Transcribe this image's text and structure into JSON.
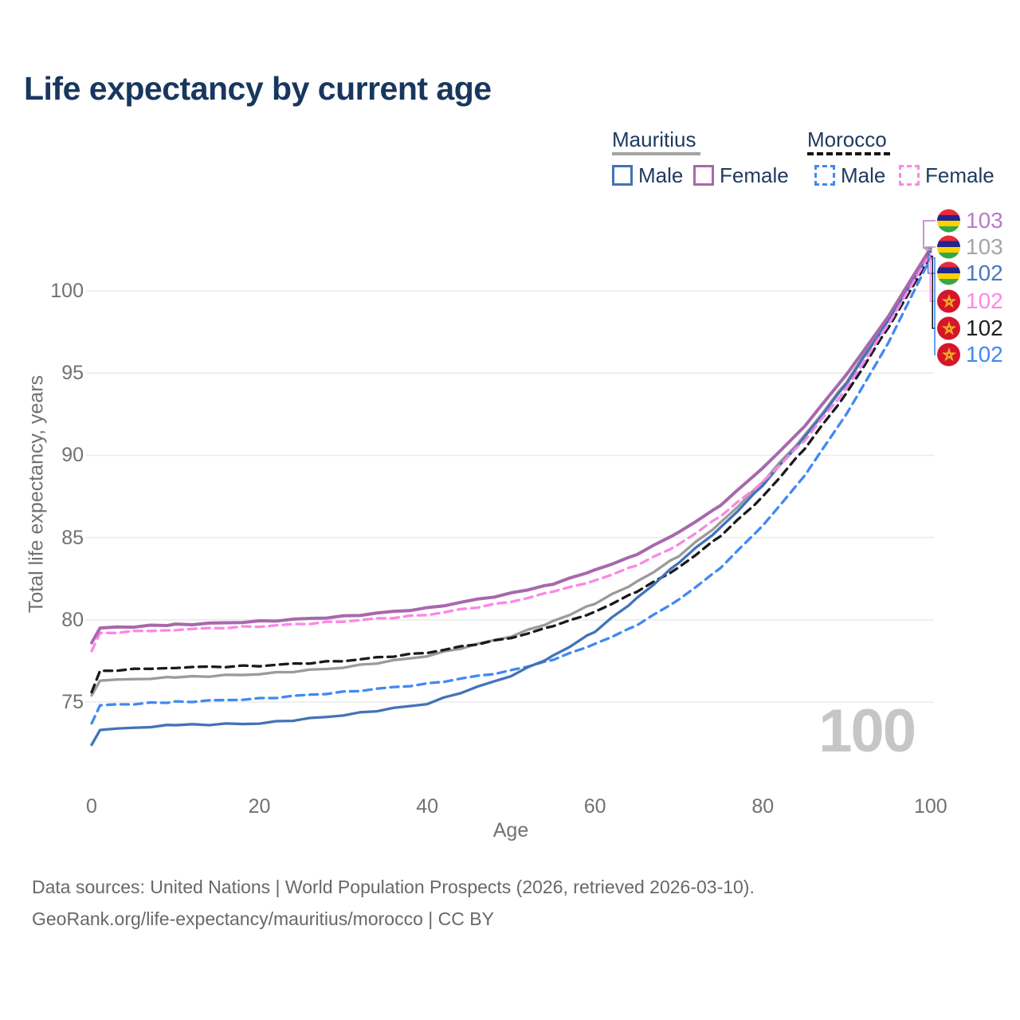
{
  "title": "Life expectancy by current age",
  "legend": {
    "mauritius": {
      "label": "Mauritius",
      "male": "Male",
      "female": "Female"
    },
    "morocco": {
      "label": "Morocco",
      "male": "Male",
      "female": "Female"
    }
  },
  "axes": {
    "y_title": "Total life expectancy, years",
    "x_title": "Age",
    "y_ticks": [
      75,
      80,
      85,
      90,
      95,
      100
    ],
    "x_ticks": [
      0,
      20,
      40,
      60,
      80,
      100
    ]
  },
  "watermark": "100",
  "end_labels": [
    {
      "series": "Mauritius Female",
      "value_label": "103",
      "flag": "mauritius",
      "color": "#b67cc8"
    },
    {
      "series": "Mauritius All",
      "value_label": "103",
      "flag": "mauritius",
      "color": "#a6a6a6"
    },
    {
      "series": "Mauritius Male",
      "value_label": "102",
      "flag": "mauritius",
      "color": "#4a78bf"
    },
    {
      "series": "Morocco Female",
      "value_label": "102",
      "flag": "morocco",
      "color": "#ff87e8"
    },
    {
      "series": "Morocco All",
      "value_label": "102",
      "flag": "morocco",
      "color": "#1f1f1f"
    },
    {
      "series": "Morocco Male",
      "value_label": "102",
      "flag": "morocco",
      "color": "#4189f2"
    }
  ],
  "footer": {
    "line1": "Data sources: United Nations | World Population Prospects (2026, retrieved 2026-03-10).",
    "line2": "GeoRank.org/life-expectancy/mauritius/morocco | CC BY"
  },
  "colors": {
    "title_text": "#18375e",
    "legend_text": "#1e3a5e",
    "axis_text": "#717171",
    "gridline": "#ebebeb",
    "watermark": "#c6c6c6",
    "footer_text": "#686868",
    "mauritius_male": "#4273b8",
    "mauritius_female": "#a868ac",
    "mauritius_all": "#9b9b9b",
    "morocco_male": "#4189f2",
    "morocco_female": "#fb87e6",
    "morocco_all": "#1a1a1a"
  },
  "chart_data": {
    "type": "line",
    "title": "Life expectancy by current age",
    "xlabel": "Age",
    "ylabel": "Total life expectancy, years",
    "xlim": [
      0,
      100
    ],
    "ylim_shown": [
      72,
      103
    ],
    "grid": "horizontal-only",
    "legend_position": "top-right",
    "x": [
      0,
      1,
      10,
      20,
      30,
      40,
      50,
      55,
      60,
      65,
      70,
      75,
      80,
      85,
      90,
      95,
      100
    ],
    "series": [
      {
        "name": "Mauritius All",
        "country": "Mauritius",
        "sex": "All",
        "style": "solid",
        "color": "#9b9b9b",
        "values": [
          75.4,
          76.3,
          76.5,
          76.7,
          77.1,
          77.8,
          79.0,
          79.9,
          81.0,
          82.3,
          83.9,
          85.9,
          88.4,
          91.2,
          94.5,
          98.3,
          102.5
        ]
      },
      {
        "name": "Morocco All",
        "country": "Morocco",
        "sex": "All",
        "style": "dashed",
        "color": "#1a1a1a",
        "values": [
          75.6,
          76.9,
          77.1,
          77.2,
          77.5,
          78.0,
          78.9,
          79.6,
          80.5,
          81.7,
          83.2,
          85.1,
          87.5,
          90.4,
          93.8,
          97.8,
          102.1
        ]
      },
      {
        "name": "Morocco Male",
        "country": "Morocco",
        "sex": "Male",
        "style": "dashed",
        "color": "#4189f2",
        "values": [
          73.7,
          74.8,
          75.0,
          75.2,
          75.6,
          76.1,
          76.9,
          77.6,
          78.5,
          79.7,
          81.2,
          83.2,
          85.7,
          88.8,
          92.5,
          96.9,
          102.0
        ]
      },
      {
        "name": "Mauritius Male",
        "country": "Mauritius",
        "sex": "Male",
        "style": "solid",
        "color": "#4273b8",
        "values": [
          72.4,
          73.3,
          73.6,
          73.7,
          74.2,
          74.9,
          76.6,
          77.8,
          79.3,
          81.3,
          83.5,
          85.6,
          88.2,
          91.1,
          94.4,
          98.2,
          102.4
        ]
      },
      {
        "name": "Morocco Female",
        "country": "Morocco",
        "sex": "Female",
        "style": "dashed",
        "color": "#fb87e6",
        "values": [
          78.1,
          79.2,
          79.4,
          79.6,
          79.9,
          80.3,
          81.1,
          81.7,
          82.4,
          83.3,
          84.6,
          86.3,
          88.4,
          90.9,
          94.1,
          98.0,
          102.3
        ]
      },
      {
        "name": "Mauritius Female",
        "country": "Mauritius",
        "sex": "Female",
        "style": "solid",
        "color": "#a868ac",
        "values": [
          78.6,
          79.5,
          79.7,
          79.9,
          80.2,
          80.7,
          81.6,
          82.2,
          83.0,
          84.0,
          85.3,
          87.0,
          89.2,
          91.8,
          94.9,
          98.5,
          102.6
        ]
      }
    ]
  }
}
